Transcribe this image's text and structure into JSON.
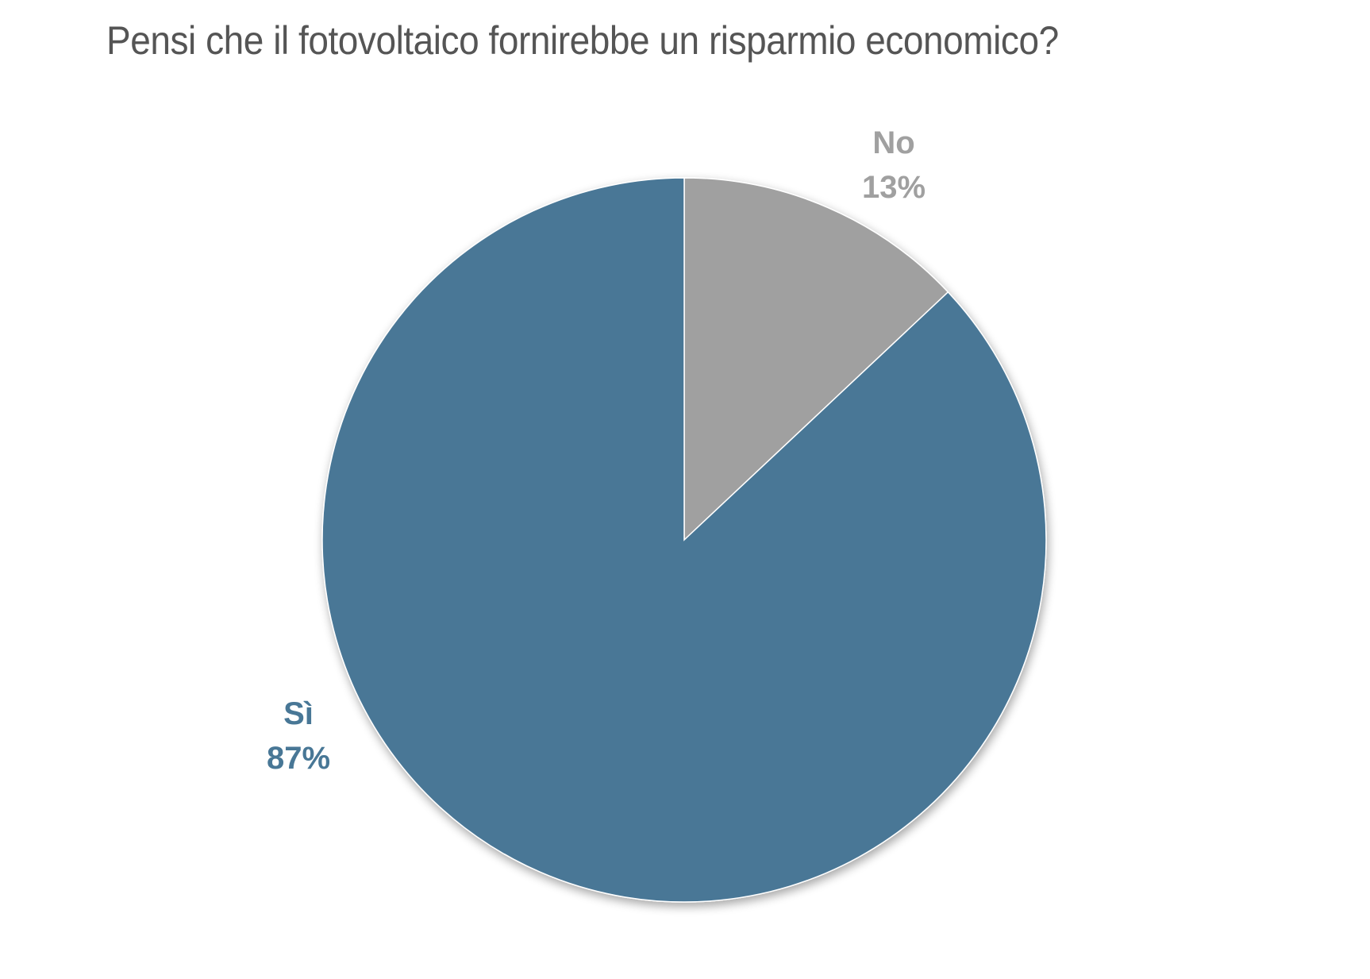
{
  "chart_data": {
    "type": "pie",
    "title": "Pensi che il fotovoltaico fornirebbe un risparmio economico?",
    "start": "12 o'clock",
    "direction": "clockwise",
    "slices": [
      {
        "name": "No",
        "value": 13,
        "label": "13%",
        "color": "#a0a0a0",
        "label_position": "outside-top-right"
      },
      {
        "name": "Sì",
        "value": 87,
        "label": "87%",
        "color": "#487796",
        "label_position": "outside-left"
      }
    ]
  }
}
